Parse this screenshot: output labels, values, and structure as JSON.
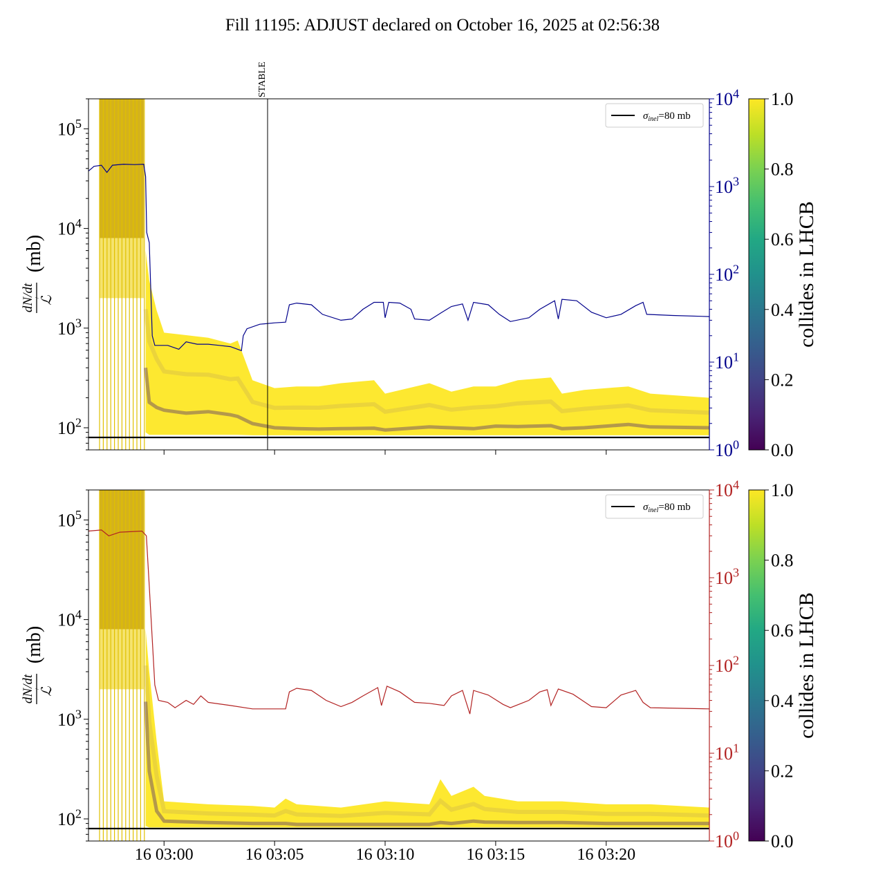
{
  "title": "Fill 11195: ADJUST declared on October 16, 2025 at 02:56:38",
  "chart_data": [
    {
      "type": "line",
      "panel": "top",
      "ylabel": "dN/dt / ℒ (mb)",
      "ylabel_parts": {
        "num": "dN/dt",
        "den": "ℒ",
        "unit": "(mb)"
      },
      "yscale": "log",
      "ylim": [
        60,
        200000
      ],
      "yticks": [
        "10^2",
        "10^3",
        "10^4",
        "10^5"
      ],
      "xlim": [
        "02:56:35",
        "03:24:40"
      ],
      "xticks": [],
      "right_axis": {
        "scale": "log",
        "ylim": [
          1,
          10000
        ],
        "ticks": [
          "10^0",
          "10^1",
          "10^2",
          "10^3",
          "10^4"
        ],
        "color": "#00008b"
      },
      "vline": {
        "time": "03:04:41",
        "label": "STABLE"
      },
      "hline": {
        "value": 80,
        "legend": "σ_inel=80 mb",
        "legend_sigma": "σ",
        "legend_sub": "inel",
        "legend_rest": "=80 mb",
        "placement": "top-right"
      },
      "colorbar": {
        "label": "collides in LHCB",
        "ticks": [
          "0.0",
          "0.2",
          "0.4",
          "0.6",
          "0.8",
          "1.0"
        ],
        "colormap": "viridis"
      },
      "spike_end": "02:59:05",
      "band": {
        "times": [
          "02:59:10",
          "02:59:20",
          "02:59:40",
          "03:00:00",
          "03:01:00",
          "03:02:00",
          "03:03:00",
          "03:03:20",
          "03:04:00",
          "03:05:00",
          "03:06:00",
          "03:07:00",
          "03:08:00",
          "03:09:30",
          "03:10:00",
          "03:12:00",
          "03:13:00",
          "03:14:00",
          "03:15:00",
          "03:16:00",
          "03:17:30",
          "03:18:00",
          "03:19:00",
          "03:21:00",
          "03:22:00",
          "03:24:40"
        ],
        "upper": [
          6000,
          3000,
          1500,
          900,
          850,
          800,
          700,
          750,
          300,
          250,
          260,
          260,
          280,
          300,
          220,
          280,
          230,
          260,
          260,
          300,
          320,
          220,
          240,
          260,
          220,
          200
        ],
        "lower": [
          90,
          85,
          85,
          85,
          85,
          85,
          85,
          85,
          84,
          84,
          84,
          84,
          84,
          84,
          84,
          84,
          84,
          84,
          84,
          84,
          84,
          84,
          84,
          84,
          84,
          84
        ],
        "core": [
          400,
          180,
          160,
          150,
          140,
          145,
          135,
          130,
          110,
          100,
          98,
          97,
          98,
          99,
          95,
          102,
          100,
          98,
          104,
          103,
          105,
          98,
          100,
          108,
          102,
          100
        ]
      },
      "line": {
        "color": "#00008b",
        "points": [
          [
            "02:56:35",
            1500
          ],
          [
            "02:56:50",
            1700
          ],
          [
            "02:57:10",
            1750
          ],
          [
            "02:57:25",
            1450
          ],
          [
            "02:57:40",
            1750
          ],
          [
            "02:58:10",
            1800
          ],
          [
            "02:58:40",
            1780
          ],
          [
            "02:59:05",
            1800
          ],
          [
            "02:59:10",
            1300
          ],
          [
            "02:59:13",
            300
          ],
          [
            "02:59:20",
            230
          ],
          [
            "02:59:28",
            20
          ],
          [
            "02:59:35",
            15.5
          ],
          [
            "03:00:10",
            15.5
          ],
          [
            "03:00:40",
            14
          ],
          [
            "03:01:00",
            17
          ],
          [
            "03:01:30",
            16
          ],
          [
            "03:02:00",
            16
          ],
          [
            "03:02:30",
            15.5
          ],
          [
            "03:03:00",
            15
          ],
          [
            "03:03:30",
            13.5
          ],
          [
            "03:03:35",
            20
          ],
          [
            "03:03:45",
            24
          ],
          [
            "03:04:20",
            27
          ],
          [
            "03:05:00",
            28
          ],
          [
            "03:05:30",
            28.5
          ],
          [
            "03:05:40",
            45
          ],
          [
            "03:06:00",
            47
          ],
          [
            "03:06:40",
            45
          ],
          [
            "03:07:10",
            35
          ],
          [
            "03:08:00",
            30
          ],
          [
            "03:08:30",
            31
          ],
          [
            "03:09:00",
            40
          ],
          [
            "03:09:30",
            48
          ],
          [
            "03:09:55",
            48
          ],
          [
            "03:10:00",
            32
          ],
          [
            "03:10:10",
            48
          ],
          [
            "03:10:40",
            47
          ],
          [
            "03:11:10",
            40
          ],
          [
            "03:11:20",
            31
          ],
          [
            "03:12:00",
            30
          ],
          [
            "03:12:30",
            36
          ],
          [
            "03:13:00",
            43
          ],
          [
            "03:13:30",
            46
          ],
          [
            "03:13:45",
            30
          ],
          [
            "03:14:00",
            48
          ],
          [
            "03:14:40",
            45
          ],
          [
            "03:15:10",
            35
          ],
          [
            "03:15:40",
            29
          ],
          [
            "03:16:30",
            32
          ],
          [
            "03:17:00",
            40
          ],
          [
            "03:17:40",
            50
          ],
          [
            "03:17:50",
            31
          ],
          [
            "03:18:00",
            52
          ],
          [
            "03:18:40",
            50
          ],
          [
            "03:19:20",
            37
          ],
          [
            "03:20:00",
            32
          ],
          [
            "03:20:40",
            35
          ],
          [
            "03:21:20",
            44
          ],
          [
            "03:21:40",
            48
          ],
          [
            "03:21:50",
            35
          ],
          [
            "03:23:00",
            34
          ],
          [
            "03:24:40",
            33
          ]
        ]
      }
    },
    {
      "type": "line",
      "panel": "bottom",
      "ylabel": "dN/dt / ℒ (mb)",
      "ylabel_parts": {
        "num": "dN/dt",
        "den": "ℒ",
        "unit": "(mb)"
      },
      "yscale": "log",
      "ylim": [
        60,
        200000
      ],
      "yticks": [
        "10^2",
        "10^3",
        "10^4",
        "10^5"
      ],
      "xlim": [
        "02:56:35",
        "03:24:40"
      ],
      "xticks": [
        "16 03:00",
        "16 03:05",
        "16 03:10",
        "16 03:15",
        "16 03:20"
      ],
      "xtick_times": [
        "03:00:00",
        "03:05:00",
        "03:10:00",
        "03:15:00",
        "03:20:00"
      ],
      "right_axis": {
        "scale": "log",
        "ylim": [
          1,
          10000
        ],
        "ticks": [
          "10^0",
          "10^1",
          "10^2",
          "10^3",
          "10^4"
        ],
        "color": "#b22222"
      },
      "hline": {
        "value": 80,
        "legend": "σ_inel=80 mb",
        "legend_sigma": "σ",
        "legend_sub": "inel",
        "legend_rest": "=80 mb",
        "placement": "top-right"
      },
      "colorbar": {
        "label": "collides in LHCB",
        "ticks": [
          "0.0",
          "0.2",
          "0.4",
          "0.6",
          "0.8",
          "1.0"
        ],
        "colormap": "viridis"
      },
      "spike_end": "02:59:05",
      "band": {
        "times": [
          "02:59:10",
          "02:59:20",
          "02:59:40",
          "03:00:00",
          "03:02:00",
          "03:04:00",
          "03:05:00",
          "03:05:30",
          "03:06:00",
          "03:08:00",
          "03:10:00",
          "03:12:00",
          "03:12:30",
          "03:13:00",
          "03:14:00",
          "03:14:30",
          "03:16:00",
          "03:18:00",
          "03:20:00",
          "03:22:00",
          "03:24:40"
        ],
        "upper": [
          8000,
          3000,
          600,
          150,
          140,
          135,
          130,
          160,
          140,
          130,
          150,
          140,
          250,
          170,
          210,
          170,
          150,
          150,
          140,
          140,
          130
        ],
        "lower": [
          85,
          82,
          82,
          82,
          82,
          82,
          82,
          82,
          82,
          82,
          82,
          82,
          82,
          82,
          82,
          82,
          82,
          82,
          82,
          82,
          82
        ],
        "core": [
          1500,
          300,
          120,
          95,
          92,
          90,
          90,
          90,
          88,
          88,
          88,
          88,
          92,
          90,
          95,
          93,
          92,
          92,
          90,
          90,
          90
        ]
      },
      "line": {
        "color": "#b22222",
        "points": [
          [
            "02:56:35",
            3400
          ],
          [
            "02:57:10",
            3500
          ],
          [
            "02:57:30",
            3000
          ],
          [
            "02:58:00",
            3300
          ],
          [
            "02:59:00",
            3400
          ],
          [
            "02:59:12",
            3000
          ],
          [
            "02:59:20",
            800
          ],
          [
            "02:59:28",
            200
          ],
          [
            "02:59:35",
            60
          ],
          [
            "02:59:45",
            40
          ],
          [
            "03:00:10",
            38
          ],
          [
            "03:00:30",
            33
          ],
          [
            "03:01:00",
            40
          ],
          [
            "03:01:20",
            36
          ],
          [
            "03:01:40",
            45
          ],
          [
            "03:02:00",
            38
          ],
          [
            "03:03:00",
            35
          ],
          [
            "03:04:00",
            32
          ],
          [
            "03:05:30",
            32
          ],
          [
            "03:05:40",
            50
          ],
          [
            "03:06:00",
            55
          ],
          [
            "03:06:40",
            52
          ],
          [
            "03:07:20",
            40
          ],
          [
            "03:08:00",
            34
          ],
          [
            "03:08:30",
            38
          ],
          [
            "03:09:00",
            45
          ],
          [
            "03:09:40",
            56
          ],
          [
            "03:09:50",
            35
          ],
          [
            "03:10:05",
            58
          ],
          [
            "03:10:40",
            50
          ],
          [
            "03:11:20",
            38
          ],
          [
            "03:12:00",
            37
          ],
          [
            "03:12:40",
            35
          ],
          [
            "03:13:00",
            45
          ],
          [
            "03:13:30",
            52
          ],
          [
            "03:13:50",
            28
          ],
          [
            "03:14:00",
            52
          ],
          [
            "03:14:40",
            46
          ],
          [
            "03:15:20",
            36
          ],
          [
            "03:15:40",
            33
          ],
          [
            "03:16:30",
            40
          ],
          [
            "03:17:00",
            50
          ],
          [
            "03:17:20",
            53
          ],
          [
            "03:17:30",
            35
          ],
          [
            "03:17:50",
            54
          ],
          [
            "03:18:30",
            47
          ],
          [
            "03:19:20",
            34
          ],
          [
            "03:20:00",
            33
          ],
          [
            "03:20:40",
            46
          ],
          [
            "03:21:20",
            52
          ],
          [
            "03:21:40",
            38
          ],
          [
            "03:22:00",
            33
          ],
          [
            "03:24:40",
            32
          ]
        ]
      }
    }
  ]
}
